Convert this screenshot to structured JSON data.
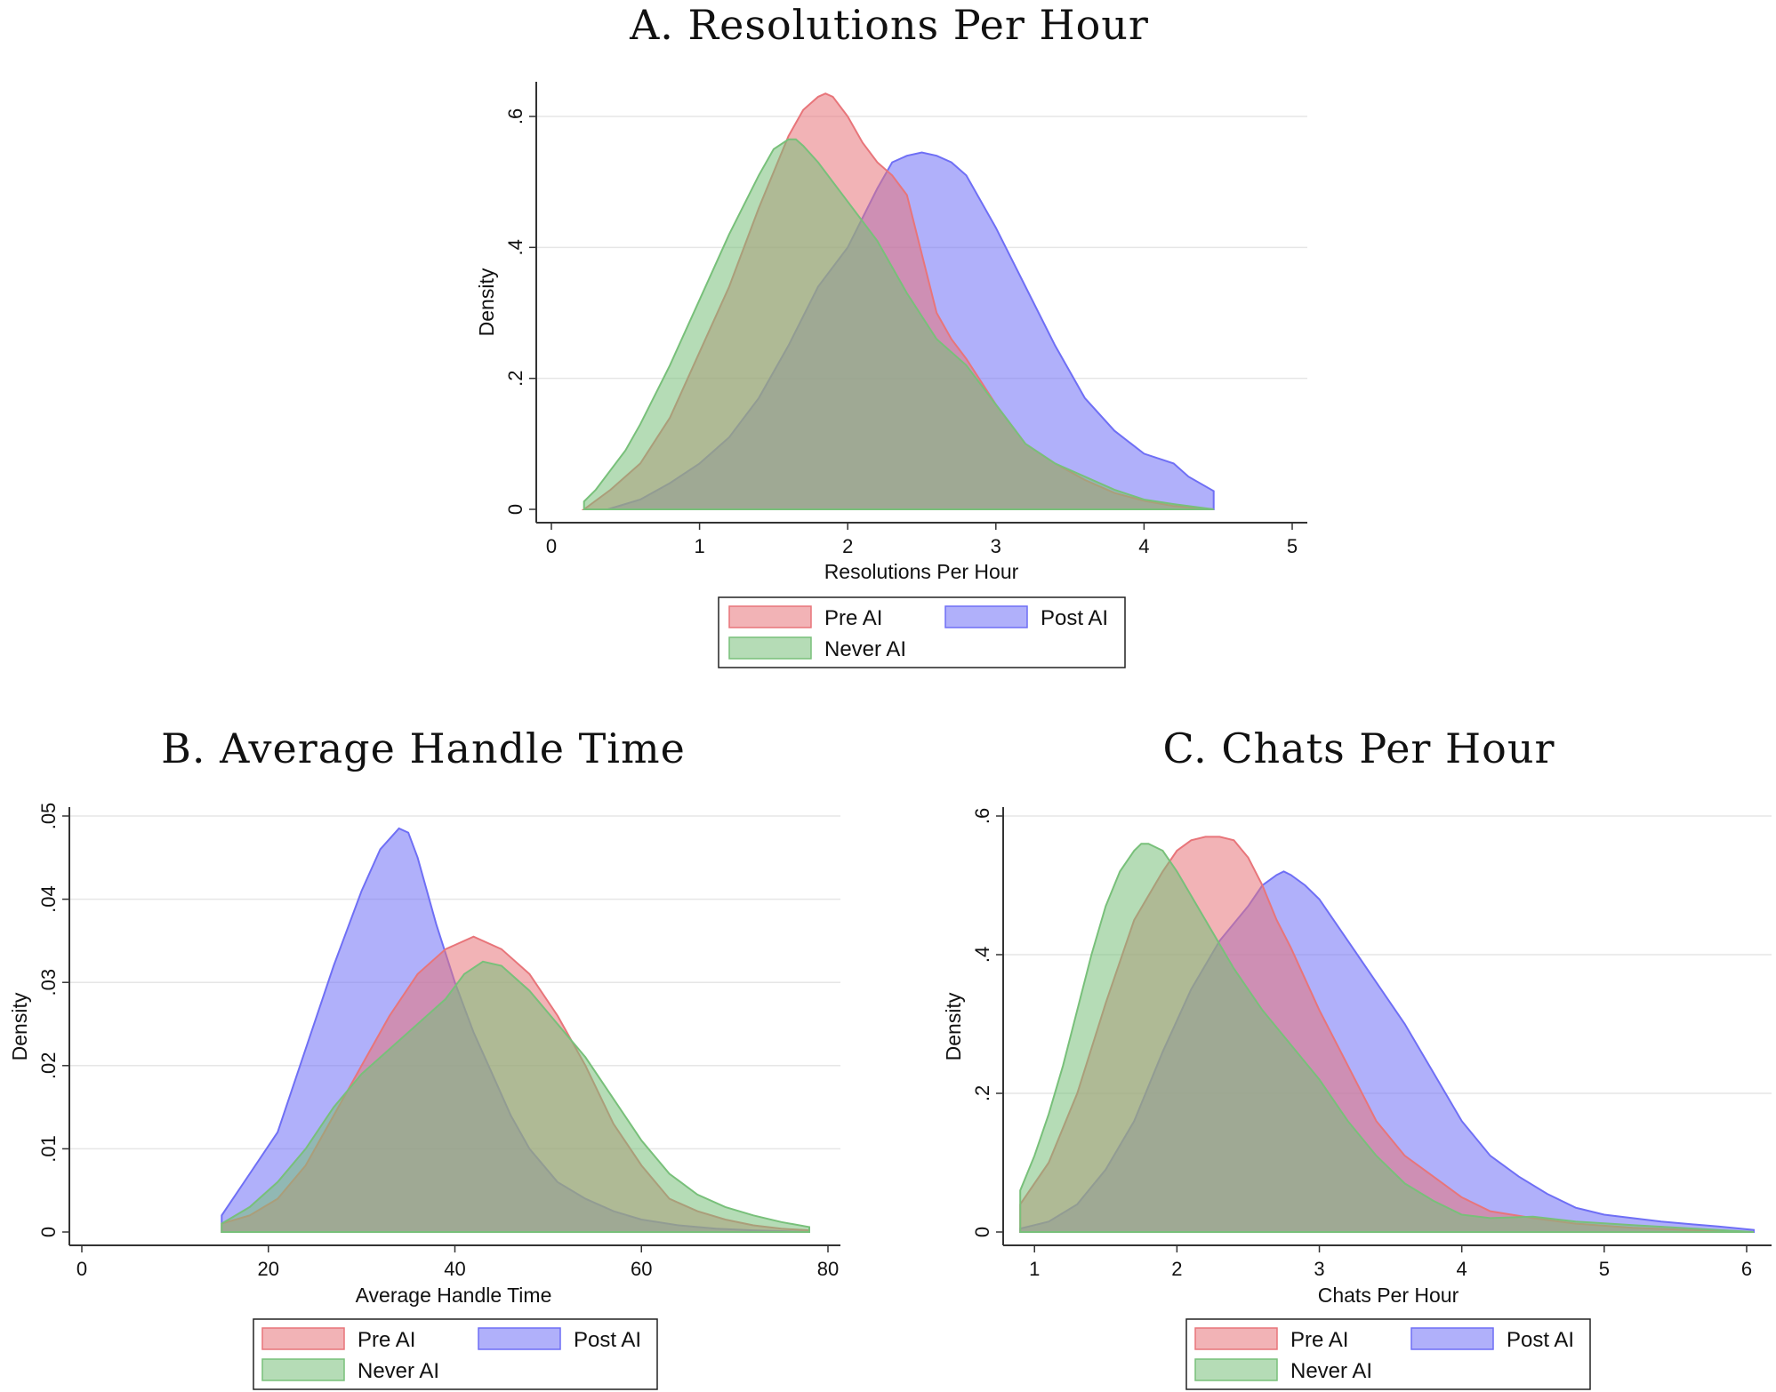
{
  "chart_data": [
    {
      "type": "area",
      "title": "A. Resolutions Per Hour",
      "xlabel": "Resolutions Per Hour",
      "ylabel": "Density",
      "xlim": [
        0,
        5
      ],
      "ylim": [
        0,
        0.6
      ],
      "xticks": [
        0,
        1,
        2,
        3,
        4,
        5
      ],
      "xtick_labels": [
        "0",
        "1",
        "2",
        "3",
        "4",
        "5"
      ],
      "yticks": [
        0,
        0.2,
        0.4,
        0.6
      ],
      "ytick_labels": [
        "0",
        ".2",
        ".4",
        ".6"
      ],
      "grid": true,
      "legend_position": "bottom",
      "series": [
        {
          "name": "Pre AI",
          "color": "#e8757a",
          "x": [
            0.22,
            0.4,
            0.6,
            0.8,
            1.0,
            1.2,
            1.4,
            1.6,
            1.7,
            1.8,
            1.85,
            1.9,
            2.0,
            2.1,
            2.2,
            2.3,
            2.4,
            2.5,
            2.6,
            2.7,
            2.8,
            3.0,
            3.2,
            3.4,
            3.6,
            3.8,
            4.0,
            4.2,
            4.47
          ],
          "values": [
            0.0,
            0.03,
            0.07,
            0.14,
            0.24,
            0.34,
            0.46,
            0.57,
            0.61,
            0.63,
            0.635,
            0.63,
            0.6,
            0.56,
            0.53,
            0.51,
            0.48,
            0.39,
            0.3,
            0.26,
            0.23,
            0.16,
            0.1,
            0.07,
            0.045,
            0.025,
            0.013,
            0.005,
            0.0
          ]
        },
        {
          "name": "Post AI",
          "color": "#6f6ff5",
          "x": [
            0.38,
            0.6,
            0.8,
            1.0,
            1.2,
            1.4,
            1.6,
            1.8,
            2.0,
            2.2,
            2.3,
            2.4,
            2.5,
            2.6,
            2.7,
            2.8,
            3.0,
            3.2,
            3.4,
            3.6,
            3.8,
            4.0,
            4.2,
            4.3,
            4.47
          ],
          "values": [
            0.0,
            0.015,
            0.04,
            0.07,
            0.11,
            0.17,
            0.25,
            0.34,
            0.4,
            0.49,
            0.53,
            0.54,
            0.545,
            0.54,
            0.53,
            0.51,
            0.43,
            0.34,
            0.25,
            0.17,
            0.12,
            0.085,
            0.07,
            0.05,
            0.028
          ]
        },
        {
          "name": "Never AI",
          "color": "#78c07a",
          "x": [
            0.22,
            0.3,
            0.4,
            0.5,
            0.6,
            0.8,
            1.0,
            1.2,
            1.4,
            1.5,
            1.6,
            1.65,
            1.7,
            1.8,
            1.9,
            2.0,
            2.2,
            2.4,
            2.6,
            2.8,
            3.0,
            3.2,
            3.4,
            3.6,
            3.8,
            4.0,
            4.2,
            4.47
          ],
          "values": [
            0.012,
            0.03,
            0.06,
            0.09,
            0.13,
            0.22,
            0.32,
            0.42,
            0.51,
            0.55,
            0.565,
            0.565,
            0.555,
            0.53,
            0.5,
            0.47,
            0.41,
            0.33,
            0.26,
            0.22,
            0.16,
            0.1,
            0.07,
            0.05,
            0.03,
            0.015,
            0.008,
            0.0
          ]
        }
      ]
    },
    {
      "type": "area",
      "title": "B. Average Handle Time",
      "xlabel": "Average Handle Time",
      "ylabel": "Density",
      "xlim": [
        0,
        80
      ],
      "ylim": [
        0,
        0.05
      ],
      "xticks": [
        0,
        20,
        40,
        60,
        80
      ],
      "xtick_labels": [
        "0",
        "20",
        "40",
        "60",
        "80"
      ],
      "yticks": [
        0,
        0.01,
        0.02,
        0.03,
        0.04,
        0.05
      ],
      "ytick_labels": [
        "0",
        ".01",
        ".02",
        ".03",
        ".04",
        ".05"
      ],
      "grid": true,
      "legend_position": "bottom",
      "series": [
        {
          "name": "Pre AI",
          "color": "#e8757a",
          "x": [
            15,
            18,
            21,
            24,
            27,
            30,
            33,
            36,
            39,
            42,
            45,
            48,
            51,
            54,
            57,
            60,
            63,
            66,
            69,
            72,
            75,
            78
          ],
          "values": [
            0.001,
            0.002,
            0.004,
            0.008,
            0.014,
            0.02,
            0.026,
            0.031,
            0.034,
            0.0355,
            0.034,
            0.031,
            0.026,
            0.02,
            0.013,
            0.008,
            0.004,
            0.0025,
            0.0015,
            0.0008,
            0.0004,
            0.0002
          ]
        },
        {
          "name": "Post AI",
          "color": "#6f6ff5",
          "x": [
            15,
            18,
            21,
            24,
            27,
            30,
            32,
            34,
            35,
            36,
            38,
            40,
            42,
            44,
            46,
            48,
            51,
            54,
            57,
            60,
            64,
            68,
            72,
            78
          ],
          "values": [
            0.002,
            0.007,
            0.012,
            0.022,
            0.032,
            0.041,
            0.046,
            0.0485,
            0.048,
            0.045,
            0.037,
            0.03,
            0.024,
            0.019,
            0.014,
            0.01,
            0.006,
            0.004,
            0.0025,
            0.0015,
            0.0008,
            0.0004,
            0.0002,
            0.0
          ]
        },
        {
          "name": "Never AI",
          "color": "#78c07a",
          "x": [
            15,
            18,
            21,
            24,
            27,
            30,
            33,
            36,
            39,
            41,
            43,
            45,
            48,
            51,
            54,
            57,
            60,
            63,
            66,
            69,
            72,
            75,
            78
          ],
          "values": [
            0.001,
            0.003,
            0.006,
            0.01,
            0.015,
            0.019,
            0.022,
            0.025,
            0.028,
            0.031,
            0.0325,
            0.032,
            0.029,
            0.025,
            0.021,
            0.016,
            0.011,
            0.007,
            0.0045,
            0.003,
            0.002,
            0.0012,
            0.0006
          ]
        }
      ]
    },
    {
      "type": "area",
      "title": "C. Chats Per Hour",
      "xlabel": "Chats Per Hour",
      "ylabel": "Density",
      "xlim": [
        0.78,
        6.1
      ],
      "ylim": [
        0,
        0.6
      ],
      "xticks": [
        1,
        2,
        3,
        4,
        5,
        6
      ],
      "xtick_labels": [
        "1",
        "2",
        "3",
        "4",
        "5",
        "6"
      ],
      "yticks": [
        0,
        0.2,
        0.4,
        0.6
      ],
      "ytick_labels": [
        "0",
        ".2",
        ".4",
        ".6"
      ],
      "grid": true,
      "legend_position": "bottom",
      "series": [
        {
          "name": "Pre AI",
          "color": "#e8757a",
          "x": [
            0.9,
            1.1,
            1.3,
            1.5,
            1.7,
            1.9,
            2.0,
            2.1,
            2.2,
            2.3,
            2.4,
            2.5,
            2.6,
            2.7,
            2.8,
            3.0,
            3.2,
            3.4,
            3.6,
            3.8,
            4.0,
            4.2,
            4.5,
            4.8,
            5.2,
            5.6,
            6.05
          ],
          "values": [
            0.04,
            0.1,
            0.2,
            0.33,
            0.45,
            0.52,
            0.55,
            0.565,
            0.57,
            0.57,
            0.565,
            0.54,
            0.5,
            0.45,
            0.41,
            0.32,
            0.24,
            0.16,
            0.11,
            0.08,
            0.05,
            0.03,
            0.02,
            0.012,
            0.006,
            0.003,
            0.0
          ]
        },
        {
          "name": "Post AI",
          "color": "#6f6ff5",
          "x": [
            0.9,
            1.1,
            1.3,
            1.5,
            1.7,
            1.9,
            2.1,
            2.3,
            2.5,
            2.6,
            2.7,
            2.75,
            2.8,
            2.9,
            3.0,
            3.2,
            3.4,
            3.6,
            3.8,
            4.0,
            4.2,
            4.4,
            4.6,
            4.8,
            5.0,
            5.4,
            5.8,
            6.05
          ],
          "values": [
            0.005,
            0.015,
            0.04,
            0.09,
            0.16,
            0.26,
            0.35,
            0.42,
            0.47,
            0.5,
            0.515,
            0.52,
            0.515,
            0.5,
            0.48,
            0.42,
            0.36,
            0.3,
            0.23,
            0.16,
            0.11,
            0.08,
            0.055,
            0.035,
            0.025,
            0.015,
            0.008,
            0.003
          ]
        },
        {
          "name": "Never AI",
          "color": "#78c07a",
          "x": [
            0.9,
            1.0,
            1.1,
            1.2,
            1.3,
            1.4,
            1.5,
            1.6,
            1.7,
            1.75,
            1.8,
            1.9,
            2.0,
            2.2,
            2.4,
            2.6,
            2.8,
            3.0,
            3.2,
            3.4,
            3.6,
            3.8,
            4.0,
            4.2,
            4.5,
            4.8,
            5.2,
            6.05
          ],
          "values": [
            0.06,
            0.11,
            0.17,
            0.24,
            0.32,
            0.4,
            0.47,
            0.52,
            0.55,
            0.56,
            0.56,
            0.55,
            0.52,
            0.45,
            0.38,
            0.32,
            0.27,
            0.22,
            0.16,
            0.11,
            0.07,
            0.045,
            0.025,
            0.02,
            0.022,
            0.015,
            0.01,
            0.0
          ]
        }
      ]
    }
  ]
}
